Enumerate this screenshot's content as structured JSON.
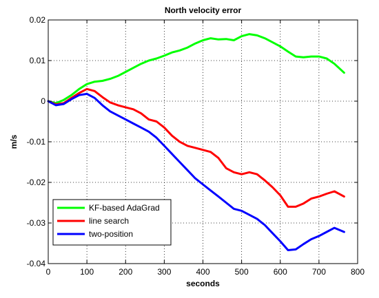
{
  "chart_data": {
    "type": "line",
    "title": "North velocity error",
    "xlabel": "seconds",
    "ylabel": "m/s",
    "xlim": [
      0,
      800
    ],
    "ylim": [
      -0.04,
      0.02
    ],
    "xticks": [
      0,
      100,
      200,
      300,
      400,
      500,
      600,
      700,
      800
    ],
    "xtick_labels": [
      "0",
      "100",
      "200",
      "300",
      "400",
      "500",
      "600",
      "700",
      "800"
    ],
    "yticks": [
      0.02,
      0.01,
      0,
      -0.01,
      -0.02,
      -0.03,
      -0.04
    ],
    "ytick_labels": [
      "0.02",
      "0.01",
      "0",
      "-0.01",
      "-0.02",
      "-0.03",
      "-0.04"
    ],
    "grid": true,
    "legend_position": "bottom-left",
    "series": [
      {
        "name": "KF-based AdaGrad",
        "color": "#00ff00",
        "x": [
          0,
          20,
          40,
          60,
          80,
          100,
          120,
          140,
          160,
          180,
          200,
          220,
          240,
          260,
          280,
          300,
          320,
          340,
          360,
          380,
          400,
          420,
          440,
          460,
          480,
          500,
          520,
          540,
          560,
          580,
          600,
          620,
          640,
          660,
          680,
          700,
          720,
          740,
          765
        ],
        "y": [
          0,
          -0.0005,
          0.0003,
          0.0015,
          0.003,
          0.0042,
          0.0048,
          0.005,
          0.0055,
          0.0062,
          0.0072,
          0.0082,
          0.0092,
          0.01,
          0.0105,
          0.0112,
          0.012,
          0.0125,
          0.0132,
          0.0142,
          0.015,
          0.0155,
          0.0152,
          0.0153,
          0.015,
          0.016,
          0.0165,
          0.0162,
          0.0155,
          0.0145,
          0.0135,
          0.0122,
          0.011,
          0.0108,
          0.011,
          0.011,
          0.0105,
          0.0092,
          0.007
        ]
      },
      {
        "name": "line search",
        "color": "#ff0000",
        "x": [
          0,
          20,
          40,
          60,
          80,
          100,
          120,
          140,
          160,
          180,
          200,
          220,
          240,
          260,
          280,
          300,
          320,
          340,
          360,
          380,
          400,
          420,
          440,
          460,
          480,
          500,
          520,
          540,
          560,
          580,
          600,
          620,
          640,
          660,
          680,
          700,
          720,
          740,
          765
        ],
        "y": [
          0,
          -0.0008,
          -0.0005,
          0.0008,
          0.002,
          0.003,
          0.0025,
          0.001,
          -0.0003,
          -0.001,
          -0.0015,
          -0.002,
          -0.003,
          -0.0045,
          -0.005,
          -0.0065,
          -0.0085,
          -0.01,
          -0.011,
          -0.0115,
          -0.012,
          -0.0125,
          -0.014,
          -0.0165,
          -0.0175,
          -0.018,
          -0.0175,
          -0.018,
          -0.0195,
          -0.0212,
          -0.0232,
          -0.026,
          -0.026,
          -0.0252,
          -0.024,
          -0.0235,
          -0.0228,
          -0.0222,
          -0.0235
        ]
      },
      {
        "name": "two-position",
        "color": "#0000ff",
        "x": [
          0,
          20,
          40,
          60,
          80,
          100,
          120,
          140,
          160,
          180,
          200,
          220,
          240,
          260,
          280,
          300,
          320,
          340,
          360,
          380,
          400,
          420,
          440,
          460,
          480,
          500,
          520,
          540,
          560,
          580,
          600,
          620,
          640,
          660,
          680,
          700,
          720,
          740,
          765
        ],
        "y": [
          0,
          -0.001,
          -0.0007,
          0.0005,
          0.0015,
          0.0018,
          0.0008,
          -0.001,
          -0.0025,
          -0.0035,
          -0.0045,
          -0.0055,
          -0.0065,
          -0.0075,
          -0.009,
          -0.011,
          -0.013,
          -0.015,
          -0.017,
          -0.019,
          -0.0205,
          -0.022,
          -0.0235,
          -0.025,
          -0.0265,
          -0.027,
          -0.028,
          -0.029,
          -0.0305,
          -0.0325,
          -0.0345,
          -0.0367,
          -0.0365,
          -0.0352,
          -0.034,
          -0.0332,
          -0.0322,
          -0.0312,
          -0.0322
        ]
      }
    ]
  }
}
